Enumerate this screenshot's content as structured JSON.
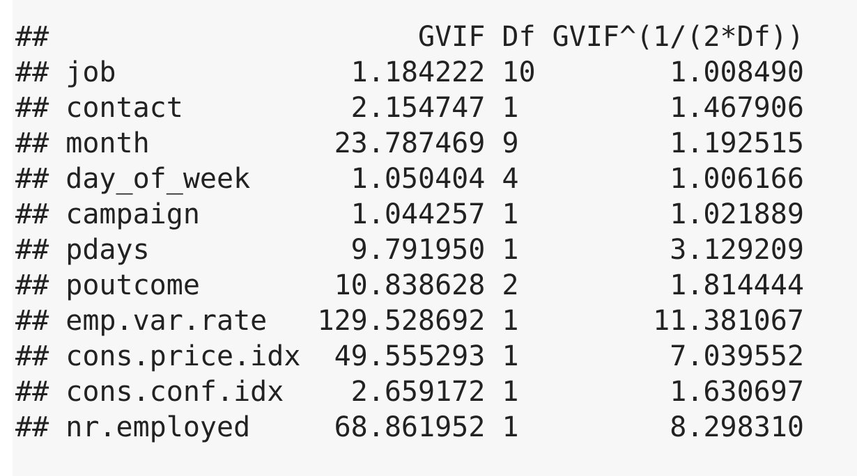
{
  "output": {
    "prefix": "##",
    "headers": [
      "GVIF",
      "Df",
      "GVIF^(1/(2*Df))"
    ],
    "rows": [
      {
        "name": "job",
        "gvif": "1.184222",
        "df": "10",
        "gvif_adj": "1.008490"
      },
      {
        "name": "contact",
        "gvif": "2.154747",
        "df": "1",
        "gvif_adj": "1.467906"
      },
      {
        "name": "month",
        "gvif": "23.787469",
        "df": "9",
        "gvif_adj": "1.192515"
      },
      {
        "name": "day_of_week",
        "gvif": "1.050404",
        "df": "4",
        "gvif_adj": "1.006166"
      },
      {
        "name": "campaign",
        "gvif": "1.044257",
        "df": "1",
        "gvif_adj": "1.021889"
      },
      {
        "name": "pdays",
        "gvif": "9.791950",
        "df": "1",
        "gvif_adj": "3.129209"
      },
      {
        "name": "poutcome",
        "gvif": "10.838628",
        "df": "2",
        "gvif_adj": "1.814444"
      },
      {
        "name": "emp.var.rate",
        "gvif": "129.528692",
        "df": "1",
        "gvif_adj": "11.381067"
      },
      {
        "name": "cons.price.idx",
        "gvif": "49.555293",
        "df": "1",
        "gvif_adj": "7.039552"
      },
      {
        "name": "cons.conf.idx",
        "gvif": "2.659172",
        "df": "1",
        "gvif_adj": "1.630697"
      },
      {
        "name": "nr.employed",
        "gvif": "68.861952",
        "df": "1",
        "gvif_adj": "8.298310"
      }
    ]
  }
}
